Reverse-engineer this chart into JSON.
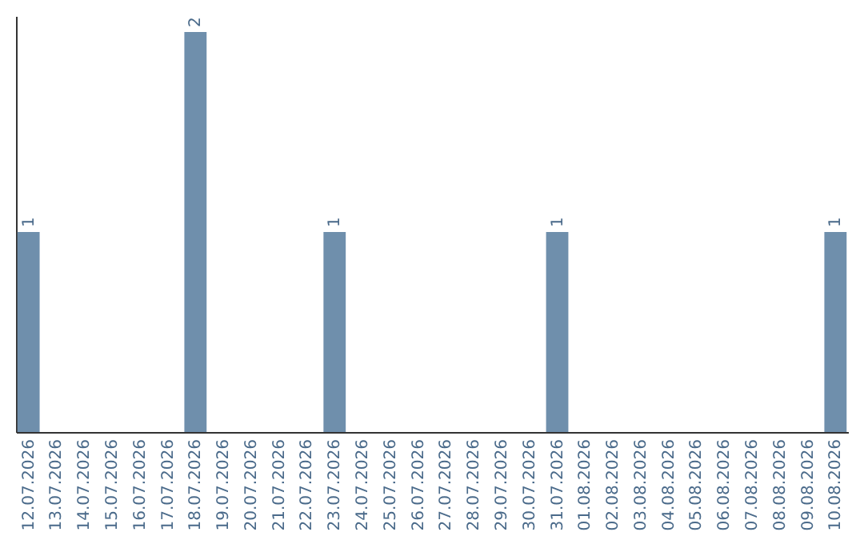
{
  "chart_data": {
    "type": "bar",
    "categories": [
      "12.07.2026",
      "13.07.2026",
      "14.07.2026",
      "15.07.2026",
      "16.07.2026",
      "17.07.2026",
      "18.07.2026",
      "19.07.2026",
      "20.07.2026",
      "21.07.2026",
      "22.07.2026",
      "23.07.2026",
      "24.07.2026",
      "25.07.2026",
      "26.07.2026",
      "27.07.2026",
      "28.07.2026",
      "29.07.2026",
      "30.07.2026",
      "31.07.2026",
      "01.08.2026",
      "02.08.2026",
      "03.08.2026",
      "04.08.2026",
      "05.08.2026",
      "06.08.2026",
      "07.08.2026",
      "08.08.2026",
      "09.08.2026",
      "10.08.2026"
    ],
    "values": [
      1,
      0,
      0,
      0,
      0,
      0,
      2,
      0,
      0,
      0,
      0,
      1,
      0,
      0,
      0,
      0,
      0,
      0,
      0,
      1,
      0,
      0,
      0,
      0,
      0,
      0,
      0,
      0,
      0,
      1
    ],
    "value_labels": [
      "1",
      null,
      null,
      null,
      null,
      null,
      "2",
      null,
      null,
      null,
      null,
      "1",
      null,
      null,
      null,
      null,
      null,
      null,
      null,
      "1",
      null,
      null,
      null,
      null,
      null,
      null,
      null,
      null,
      null,
      "1"
    ],
    "color": "#6f8fac",
    "ylim": [
      0,
      2.08
    ],
    "tick_labels": "x"
  }
}
